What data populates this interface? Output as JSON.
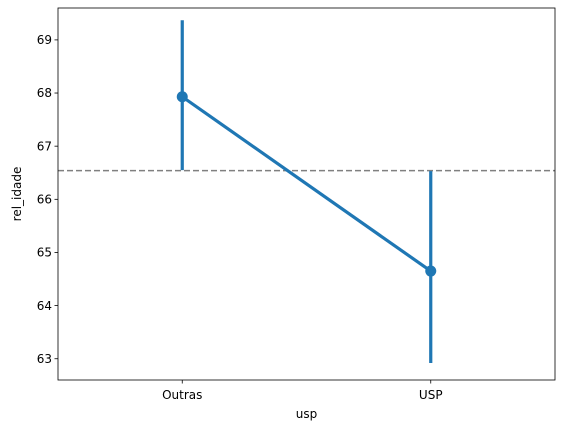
{
  "chart_data": {
    "type": "line",
    "title": "",
    "xlabel": "usp",
    "ylabel": "rel_idade",
    "categories": [
      "Outras",
      "USP"
    ],
    "series": [
      {
        "values": [
          67.93,
          64.65
        ],
        "ci_lower": [
          66.55,
          62.92
        ],
        "ci_upper": [
          69.37,
          66.53
        ],
        "color": "#1f77b4"
      }
    ],
    "reference_line": {
      "y": 66.54,
      "style": "dashed",
      "color": "#808080"
    },
    "ylim": [
      62.6,
      69.6
    ],
    "yticks": [
      63,
      64,
      65,
      66,
      67,
      68,
      69
    ],
    "grid": false
  }
}
